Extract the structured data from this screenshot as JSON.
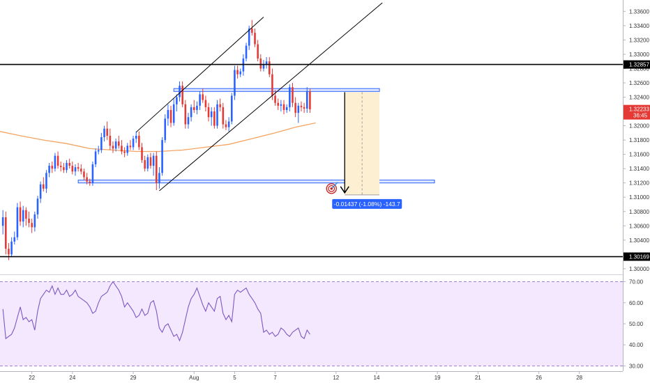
{
  "chart_data": [
    {
      "type": "candlestick",
      "price_axis": {
        "ylim": [
          1.2996,
          1.3372
        ],
        "ticks": [
          "1.33600",
          "1.33400",
          "1.33200",
          "1.33000",
          "1.32800",
          "1.32600",
          "1.32400",
          "1.32200",
          "1.32000",
          "1.31800",
          "1.31600",
          "1.31400",
          "1.31200",
          "1.31000",
          "1.30800",
          "1.30600",
          "1.30400",
          "1.30200",
          "1.30000"
        ],
        "tick_values": [
          1.336,
          1.334,
          1.332,
          1.33,
          1.328,
          1.326,
          1.324,
          1.322,
          1.32,
          1.318,
          1.316,
          1.314,
          1.312,
          1.31,
          1.308,
          1.306,
          1.304,
          1.302,
          1.3
        ],
        "grid": false
      },
      "x_axis": {
        "labels": [
          "22",
          "24",
          "29",
          "Aug",
          "5",
          "7",
          "12",
          "14",
          "19",
          "21",
          "26",
          "28"
        ],
        "label_bars": [
          10,
          24,
          45,
          66,
          80,
          94,
          115,
          129,
          150,
          164,
          185,
          199
        ],
        "bar_range": [
          -1,
          214
        ]
      },
      "ohlc": [
        [
          1.306,
          1.3082,
          1.3048,
          1.3072
        ],
        [
          1.3072,
          1.308,
          1.302,
          1.3028
        ],
        [
          1.3028,
          1.3036,
          1.3012,
          1.302
        ],
        [
          1.302,
          1.3044,
          1.3016,
          1.3038
        ],
        [
          1.3038,
          1.3052,
          1.3034,
          1.3044
        ],
        [
          1.3044,
          1.3092,
          1.304,
          1.3086
        ],
        [
          1.3086,
          1.3094,
          1.306,
          1.3066
        ],
        [
          1.3066,
          1.3088,
          1.3058,
          1.3082
        ],
        [
          1.3082,
          1.3086,
          1.306,
          1.307
        ],
        [
          1.307,
          1.308,
          1.3058,
          1.3064
        ],
        [
          1.3064,
          1.307,
          1.305,
          1.3058
        ],
        [
          1.3058,
          1.308,
          1.3052,
          1.3076
        ],
        [
          1.3076,
          1.3102,
          1.307,
          1.3098
        ],
        [
          1.3098,
          1.3122,
          1.3092,
          1.3118
        ],
        [
          1.3118,
          1.3128,
          1.3108,
          1.3112
        ],
        [
          1.3112,
          1.3138,
          1.3106,
          1.3134
        ],
        [
          1.3134,
          1.3148,
          1.3128,
          1.3144
        ],
        [
          1.3144,
          1.315,
          1.3134,
          1.314
        ],
        [
          1.314,
          1.3162,
          1.3136,
          1.3158
        ],
        [
          1.3158,
          1.3164,
          1.314,
          1.3144
        ],
        [
          1.3144,
          1.315,
          1.3136,
          1.3142
        ],
        [
          1.3142,
          1.3148,
          1.3134,
          1.3138
        ],
        [
          1.3138,
          1.3152,
          1.3134,
          1.3148
        ],
        [
          1.3148,
          1.3154,
          1.314,
          1.3144
        ],
        [
          1.3144,
          1.315,
          1.3132,
          1.3136
        ],
        [
          1.3136,
          1.3146,
          1.313,
          1.3142
        ],
        [
          1.3142,
          1.3148,
          1.3136,
          1.314
        ],
        [
          1.314,
          1.3146,
          1.3132,
          1.3136
        ],
        [
          1.3136,
          1.314,
          1.3124,
          1.3128
        ],
        [
          1.3128,
          1.3134,
          1.3118,
          1.3122
        ],
        [
          1.3122,
          1.3126,
          1.3116,
          1.312
        ],
        [
          1.312,
          1.315,
          1.3116,
          1.3146
        ],
        [
          1.3146,
          1.3168,
          1.3142,
          1.3164
        ],
        [
          1.3164,
          1.3172,
          1.316,
          1.3166
        ],
        [
          1.3166,
          1.319,
          1.3162,
          1.3184
        ],
        [
          1.3184,
          1.32,
          1.3178,
          1.3196
        ],
        [
          1.3196,
          1.3206,
          1.318,
          1.3186
        ],
        [
          1.3186,
          1.3196,
          1.3166,
          1.3172
        ],
        [
          1.3172,
          1.3178,
          1.3162,
          1.3168
        ],
        [
          1.3168,
          1.3182,
          1.3164,
          1.3178
        ],
        [
          1.3178,
          1.3186,
          1.3168,
          1.3172
        ],
        [
          1.3172,
          1.318,
          1.316,
          1.3164
        ],
        [
          1.3164,
          1.317,
          1.3156,
          1.3162
        ],
        [
          1.3162,
          1.3176,
          1.3158,
          1.3172
        ],
        [
          1.3172,
          1.318,
          1.3166,
          1.317
        ],
        [
          1.317,
          1.3186,
          1.3166,
          1.3182
        ],
        [
          1.3182,
          1.3192,
          1.3176,
          1.3186
        ],
        [
          1.3186,
          1.3192,
          1.3166,
          1.317
        ],
        [
          1.317,
          1.3176,
          1.3148,
          1.3152
        ],
        [
          1.3152,
          1.3158,
          1.3136,
          1.314
        ],
        [
          1.314,
          1.316,
          1.3136,
          1.3156
        ],
        [
          1.3156,
          1.3162,
          1.314,
          1.3144
        ],
        [
          1.3144,
          1.3162,
          1.313,
          1.3158
        ],
        [
          1.3158,
          1.3164,
          1.311,
          1.312
        ],
        [
          1.312,
          1.3142,
          1.3112,
          1.3134
        ],
        [
          1.3134,
          1.3184,
          1.313,
          1.318
        ],
        [
          1.318,
          1.3216,
          1.3176,
          1.321
        ],
        [
          1.321,
          1.323,
          1.32,
          1.3222
        ],
        [
          1.3222,
          1.3228,
          1.3198,
          1.3204
        ],
        [
          1.3204,
          1.3238,
          1.32,
          1.323
        ],
        [
          1.323,
          1.3244,
          1.322,
          1.324
        ],
        [
          1.324,
          1.3262,
          1.3234,
          1.3256
        ],
        [
          1.3256,
          1.3262,
          1.3226,
          1.323
        ],
        [
          1.323,
          1.3236,
          1.3196,
          1.3202
        ],
        [
          1.3202,
          1.3218,
          1.3196,
          1.3212
        ],
        [
          1.3212,
          1.323,
          1.3206,
          1.3226
        ],
        [
          1.3226,
          1.3236,
          1.3218,
          1.3222
        ],
        [
          1.3222,
          1.3234,
          1.3216,
          1.3228
        ],
        [
          1.3228,
          1.3248,
          1.3222,
          1.3244
        ],
        [
          1.3244,
          1.3252,
          1.3232,
          1.3236
        ],
        [
          1.3236,
          1.3242,
          1.322,
          1.3226
        ],
        [
          1.3226,
          1.3232,
          1.3206,
          1.3212
        ],
        [
          1.3212,
          1.3226,
          1.32,
          1.322
        ],
        [
          1.322,
          1.3226,
          1.3196,
          1.32
        ],
        [
          1.32,
          1.3236,
          1.3196,
          1.323
        ],
        [
          1.323,
          1.3238,
          1.322,
          1.3226
        ],
        [
          1.3226,
          1.3232,
          1.3196,
          1.3202
        ],
        [
          1.3202,
          1.3208,
          1.3194,
          1.3198
        ],
        [
          1.3198,
          1.3212,
          1.3192,
          1.3206
        ],
        [
          1.3206,
          1.3246,
          1.3202,
          1.3242
        ],
        [
          1.3242,
          1.3284,
          1.3236,
          1.3278
        ],
        [
          1.3278,
          1.3284,
          1.3266,
          1.3272
        ],
        [
          1.3272,
          1.328,
          1.3268,
          1.3276
        ],
        [
          1.3276,
          1.33,
          1.327,
          1.3294
        ],
        [
          1.3294,
          1.3316,
          1.329,
          1.3312
        ],
        [
          1.3312,
          1.334,
          1.3306,
          1.3336
        ],
        [
          1.3336,
          1.3348,
          1.3326,
          1.333
        ],
        [
          1.333,
          1.3336,
          1.331,
          1.3314
        ],
        [
          1.3314,
          1.332,
          1.329,
          1.3294
        ],
        [
          1.3294,
          1.33,
          1.3276,
          1.328
        ],
        [
          1.328,
          1.3292,
          1.3276,
          1.3286
        ],
        [
          1.3286,
          1.3296,
          1.328,
          1.329
        ],
        [
          1.329,
          1.3296,
          1.3268,
          1.3272
        ],
        [
          1.3272,
          1.328,
          1.3236,
          1.3242
        ],
        [
          1.3242,
          1.325,
          1.3228,
          1.3232
        ],
        [
          1.3232,
          1.3238,
          1.3222,
          1.3228
        ],
        [
          1.3228,
          1.3236,
          1.322,
          1.323
        ],
        [
          1.323,
          1.3236,
          1.3216,
          1.3222
        ],
        [
          1.3222,
          1.323,
          1.3218,
          1.3226
        ],
        [
          1.3226,
          1.3258,
          1.322,
          1.3254
        ],
        [
          1.3254,
          1.326,
          1.3226,
          1.3232
        ],
        [
          1.3232,
          1.324,
          1.3212,
          1.3218
        ],
        [
          1.3218,
          1.3232,
          1.3204,
          1.3228
        ],
        [
          1.3228,
          1.3234,
          1.322,
          1.3226
        ],
        [
          1.3226,
          1.3232,
          1.3218,
          1.3224
        ],
        [
          1.3224,
          1.3254,
          1.3218,
          1.3248
        ],
        [
          1.3248,
          1.3252,
          1.3218,
          1.3223
        ]
      ],
      "bullish_color": "#2962ff",
      "bearish_color": "#e53935",
      "moving_average": {
        "color": "#f4a460",
        "points": [
          [
            -1,
            1.3192
          ],
          [
            6,
            1.3186
          ],
          [
            14,
            1.318
          ],
          [
            22,
            1.3175
          ],
          [
            30,
            1.3168
          ],
          [
            38,
            1.3166
          ],
          [
            46,
            1.3164
          ],
          [
            54,
            1.3164
          ],
          [
            62,
            1.3166
          ],
          [
            70,
            1.317
          ],
          [
            78,
            1.3174
          ],
          [
            86,
            1.3182
          ],
          [
            94,
            1.319
          ],
          [
            101,
            1.3198
          ],
          [
            108,
            1.3204
          ]
        ]
      },
      "horizontal_lines": [
        {
          "price": 1.32857,
          "label": "1.32857",
          "color": "#000000"
        },
        {
          "price": 1.30169,
          "label": "1.30169",
          "color": "#000000"
        }
      ],
      "current_price": {
        "price": 1.32233,
        "label": "1.32233",
        "countdown": "36:45",
        "color": "#e53935"
      },
      "zones": [
        {
          "bar_from": 59,
          "bar_to": 130,
          "price_from": 1.3248,
          "price_to": 1.3252,
          "color": "#2962ff"
        },
        {
          "bar_from": 26,
          "bar_to": 149,
          "price_from": 1.312,
          "price_to": 1.3124,
          "color": "#2962ff"
        }
      ],
      "trendlines": [
        {
          "from": [
            46,
            1.3191
          ],
          "to": [
            90,
            1.3352
          ]
        },
        {
          "from": [
            54,
            1.3109
          ],
          "to": [
            131,
            1.3372
          ]
        }
      ],
      "forecast": {
        "bar_from": 118,
        "bar_to": 130,
        "entry": 1.3247,
        "target": 1.31033,
        "label": "-0.01437 (-1.08%) -143.7",
        "label_color": "#2962ff",
        "box_color": "#fdf0d2"
      }
    },
    {
      "type": "line",
      "name": "RSI",
      "ylim": [
        28.5,
        71.5
      ],
      "ticks": [
        "70.00",
        "60.00",
        "50.00",
        "40.00",
        "30.00"
      ],
      "tick_values": [
        70,
        60,
        50,
        40,
        30
      ],
      "band": [
        30,
        70
      ],
      "band_color": "#f3e8fd",
      "line_color": "#7e57c2",
      "values": [
        57,
        43,
        44,
        45,
        48,
        53,
        58,
        52,
        53,
        51,
        52,
        47,
        56,
        62,
        64,
        66,
        65,
        68,
        64,
        67,
        64,
        64,
        66,
        63,
        64,
        66,
        63,
        62,
        61,
        60,
        58,
        55,
        56,
        60,
        63,
        64,
        65,
        68,
        70,
        68,
        66,
        63,
        58,
        60,
        58,
        56,
        53,
        54,
        57,
        54,
        55,
        60,
        61,
        56,
        48,
        46,
        49,
        50,
        47,
        44,
        45,
        42,
        46,
        52,
        58,
        62,
        64,
        67,
        63,
        59,
        56,
        60,
        58,
        56,
        62,
        63,
        55,
        52,
        54,
        51,
        64,
        66,
        65,
        66,
        67,
        64,
        62,
        60,
        57,
        55,
        46,
        47,
        45,
        46,
        44,
        45,
        48,
        47,
        45,
        44,
        46,
        47,
        48,
        44,
        43,
        47,
        45
      ]
    }
  ]
}
